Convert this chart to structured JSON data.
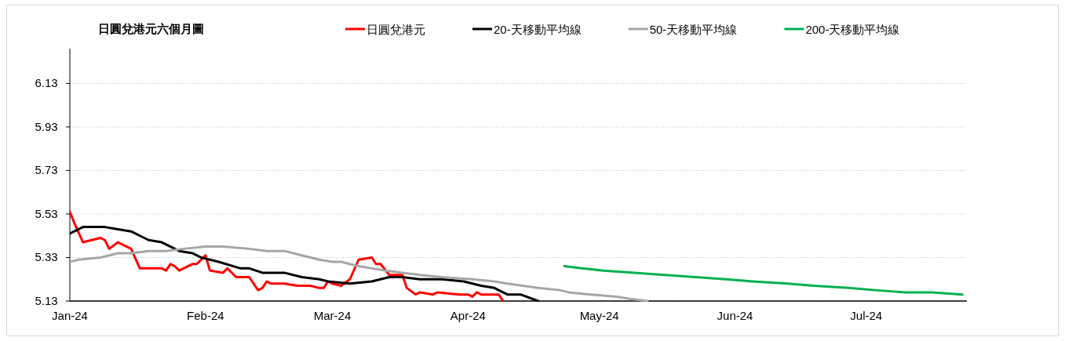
{
  "chart_data": {
    "type": "line",
    "title": "日圓兌港元六個月圖",
    "xlim": [
      "2024-01-01",
      "2024-07-24"
    ],
    "xticks": [
      {
        "value": "2024-01-01",
        "label": "Jan-24"
      },
      {
        "value": "2024-02-01",
        "label": "Feb-24"
      },
      {
        "value": "2024-03-01",
        "label": "Mar-24"
      },
      {
        "value": "2024-04-01",
        "label": "Apr-24"
      },
      {
        "value": "2024-05-01",
        "label": "May-24"
      },
      {
        "value": "2024-06-01",
        "label": "Jun-24"
      },
      {
        "value": "2024-07-01",
        "label": "Jul-24"
      }
    ],
    "ylim": [
      5.13,
      6.29
    ],
    "yticks": [
      5.13,
      5.33,
      5.53,
      5.73,
      5.93,
      6.13
    ],
    "grid": "y",
    "legend": "top",
    "marker": "none",
    "line_style": "solid",
    "series": [
      {
        "name": "日圓兌港元",
        "color": "#ff0000",
        "x": [
          "2024-01-01",
          "2024-01-02",
          "2024-01-04",
          "2024-01-08",
          "2024-01-09",
          "2024-01-10",
          "2024-01-12",
          "2024-01-15",
          "2024-01-17",
          "2024-01-22",
          "2024-01-23",
          "2024-01-24",
          "2024-01-25",
          "2024-01-26",
          "2024-01-29",
          "2024-01-30",
          "2024-02-01",
          "2024-02-02",
          "2024-02-05",
          "2024-02-06",
          "2024-02-08",
          "2024-02-11",
          "2024-02-13",
          "2024-02-14",
          "2024-02-15",
          "2024-02-16",
          "2024-02-19",
          "2024-02-22",
          "2024-02-25",
          "2024-02-27",
          "2024-02-28",
          "2024-02-29",
          "2024-03-01",
          "2024-03-03",
          "2024-03-05",
          "2024-03-07",
          "2024-03-10",
          "2024-03-11",
          "2024-03-12",
          "2024-03-14",
          "2024-03-17",
          "2024-03-18",
          "2024-03-20",
          "2024-03-21",
          "2024-03-24",
          "2024-03-25",
          "2024-03-30",
          "2024-04-01",
          "2024-04-02",
          "2024-04-03",
          "2024-04-04",
          "2024-04-08",
          "2024-04-09"
        ],
        "values": [
          5.54,
          5.49,
          5.4,
          5.42,
          5.41,
          5.37,
          5.4,
          5.37,
          5.28,
          5.28,
          5.27,
          5.3,
          5.29,
          5.27,
          5.3,
          5.3,
          5.34,
          5.27,
          5.26,
          5.28,
          5.24,
          5.24,
          5.18,
          5.19,
          5.22,
          5.21,
          5.21,
          5.2,
          5.2,
          5.19,
          5.19,
          5.22,
          5.21,
          5.2,
          5.23,
          5.32,
          5.33,
          5.3,
          5.3,
          5.25,
          5.25,
          5.19,
          5.16,
          5.17,
          5.16,
          5.17,
          5.16,
          5.16,
          5.15,
          5.17,
          5.16,
          5.16,
          5.13
        ]
      },
      {
        "name": "20-天移動平均線",
        "color": "#000000",
        "x": [
          "2024-01-01",
          "2024-01-04",
          "2024-01-09",
          "2024-01-12",
          "2024-01-15",
          "2024-01-17",
          "2024-01-19",
          "2024-01-22",
          "2024-01-26",
          "2024-01-29",
          "2024-01-31",
          "2024-02-04",
          "2024-02-09",
          "2024-02-11",
          "2024-02-14",
          "2024-02-19",
          "2024-02-23",
          "2024-02-27",
          "2024-02-29",
          "2024-03-05",
          "2024-03-10",
          "2024-03-14",
          "2024-03-17",
          "2024-03-21",
          "2024-03-26",
          "2024-03-31",
          "2024-04-04",
          "2024-04-07",
          "2024-04-10",
          "2024-04-13",
          "2024-04-17"
        ],
        "values": [
          5.44,
          5.47,
          5.47,
          5.46,
          5.45,
          5.43,
          5.41,
          5.4,
          5.36,
          5.35,
          5.33,
          5.31,
          5.28,
          5.28,
          5.26,
          5.26,
          5.24,
          5.23,
          5.22,
          5.21,
          5.22,
          5.24,
          5.24,
          5.23,
          5.23,
          5.22,
          5.2,
          5.19,
          5.16,
          5.16,
          5.13
        ]
      },
      {
        "name": "50-天移動平均線",
        "color": "#a6a6a6",
        "x": [
          "2024-01-01",
          "2024-01-03",
          "2024-01-08",
          "2024-01-12",
          "2024-01-15",
          "2024-01-19",
          "2024-01-23",
          "2024-01-27",
          "2024-02-01",
          "2024-02-05",
          "2024-02-11",
          "2024-02-15",
          "2024-02-19",
          "2024-02-23",
          "2024-02-27",
          "2024-03-01",
          "2024-03-03",
          "2024-03-07",
          "2024-03-13",
          "2024-03-17",
          "2024-03-21",
          "2024-03-26",
          "2024-04-02",
          "2024-04-07",
          "2024-04-10",
          "2024-04-17",
          "2024-04-22",
          "2024-04-24",
          "2024-04-29",
          "2024-05-05",
          "2024-05-08",
          "2024-05-12"
        ],
        "values": [
          5.31,
          5.32,
          5.33,
          5.35,
          5.35,
          5.36,
          5.36,
          5.37,
          5.38,
          5.38,
          5.37,
          5.36,
          5.36,
          5.34,
          5.32,
          5.31,
          5.31,
          5.29,
          5.27,
          5.26,
          5.25,
          5.24,
          5.23,
          5.22,
          5.21,
          5.19,
          5.18,
          5.17,
          5.16,
          5.15,
          5.14,
          5.13
        ]
      },
      {
        "name": "200-天移動平均線",
        "color": "#00b050",
        "x": [
          "2024-04-23",
          "2024-04-27",
          "2024-05-02",
          "2024-05-09",
          "2024-05-16",
          "2024-05-23",
          "2024-05-30",
          "2024-06-05",
          "2024-06-13",
          "2024-06-19",
          "2024-06-27",
          "2024-07-03",
          "2024-07-10",
          "2024-07-16",
          "2024-07-23"
        ],
        "values": [
          5.29,
          5.28,
          5.27,
          5.26,
          5.25,
          5.24,
          5.23,
          5.22,
          5.21,
          5.2,
          5.19,
          5.18,
          5.17,
          5.17,
          5.16
        ]
      }
    ]
  }
}
